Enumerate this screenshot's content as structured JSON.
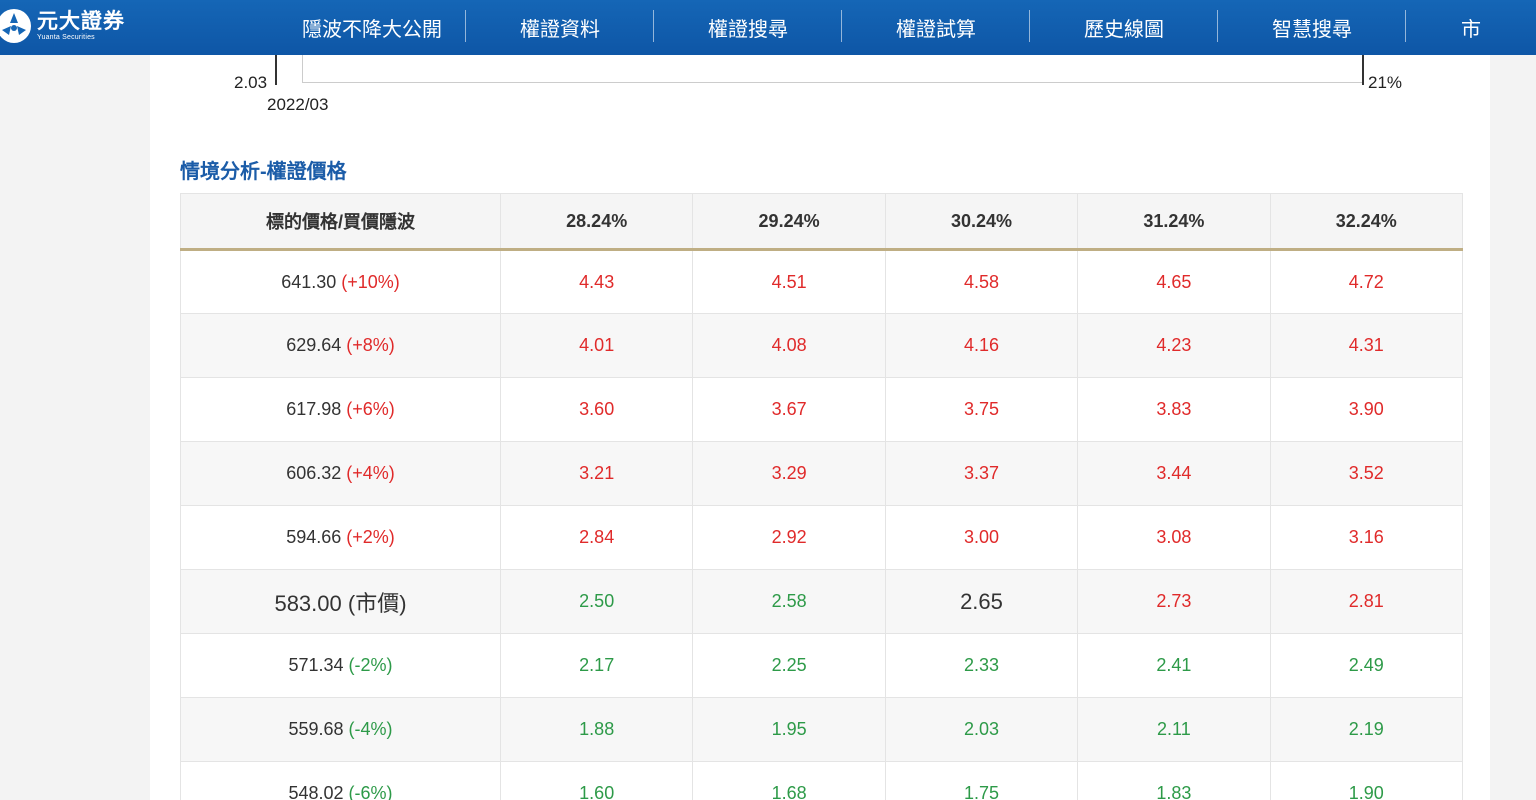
{
  "brand": {
    "name_cn": "元大證券",
    "name_en": "Yuanta Securities"
  },
  "nav": [
    {
      "label": "隱波不降大公開"
    },
    {
      "label": "權證資料"
    },
    {
      "label": "權證搜尋"
    },
    {
      "label": "權證試算"
    },
    {
      "label": "歷史線圖"
    },
    {
      "label": "智慧搜尋"
    },
    {
      "label": "市"
    }
  ],
  "chart_fragment": {
    "y_left_tick": "2.03",
    "y_right_tick": "21%",
    "x_tick": "2022/03"
  },
  "section": {
    "title": "情境分析-權證價格"
  },
  "table": {
    "header_first": "標的價格/買價隱波",
    "vol_headers": [
      "28.24%",
      "29.24%",
      "30.24%",
      "31.24%",
      "32.24%"
    ],
    "rows": [
      {
        "price": "641.30",
        "change": "(+10%)",
        "trend": "up",
        "values": [
          "4.43",
          "4.51",
          "4.58",
          "4.65",
          "4.72"
        ],
        "value_trend": [
          "up",
          "up",
          "up",
          "up",
          "up"
        ]
      },
      {
        "price": "629.64",
        "change": "(+8%)",
        "trend": "up",
        "values": [
          "4.01",
          "4.08",
          "4.16",
          "4.23",
          "4.31"
        ],
        "value_trend": [
          "up",
          "up",
          "up",
          "up",
          "up"
        ]
      },
      {
        "price": "617.98",
        "change": "(+6%)",
        "trend": "up",
        "values": [
          "3.60",
          "3.67",
          "3.75",
          "3.83",
          "3.90"
        ],
        "value_trend": [
          "up",
          "up",
          "up",
          "up",
          "up"
        ]
      },
      {
        "price": "606.32",
        "change": "(+4%)",
        "trend": "up",
        "values": [
          "3.21",
          "3.29",
          "3.37",
          "3.44",
          "3.52"
        ],
        "value_trend": [
          "up",
          "up",
          "up",
          "up",
          "up"
        ]
      },
      {
        "price": "594.66",
        "change": "(+2%)",
        "trend": "up",
        "values": [
          "2.84",
          "2.92",
          "3.00",
          "3.08",
          "3.16"
        ],
        "value_trend": [
          "up",
          "up",
          "up",
          "up",
          "up"
        ]
      },
      {
        "price": "583.00",
        "change": "(市價)",
        "trend": "neutral",
        "values": [
          "2.50",
          "2.58",
          "2.65",
          "2.73",
          "2.81"
        ],
        "value_trend": [
          "down",
          "down",
          "neutral",
          "up",
          "up"
        ]
      },
      {
        "price": "571.34",
        "change": "(-2%)",
        "trend": "down",
        "values": [
          "2.17",
          "2.25",
          "2.33",
          "2.41",
          "2.49"
        ],
        "value_trend": [
          "down",
          "down",
          "down",
          "down",
          "down"
        ]
      },
      {
        "price": "559.68",
        "change": "(-4%)",
        "trend": "down",
        "values": [
          "1.88",
          "1.95",
          "2.03",
          "2.11",
          "2.19"
        ],
        "value_trend": [
          "down",
          "down",
          "down",
          "down",
          "down"
        ]
      },
      {
        "price": "548.02",
        "change": "(-6%)",
        "trend": "down",
        "values": [
          "1.60",
          "1.68",
          "1.75",
          "1.83",
          "1.90"
        ],
        "value_trend": [
          "down",
          "down",
          "down",
          "down",
          "down"
        ]
      }
    ]
  },
  "colors": {
    "header_bg": "#1566b6",
    "up": "#e02a2a",
    "down": "#2d9a48",
    "title": "#1b5ca8",
    "header_rule": "#bfae84"
  }
}
